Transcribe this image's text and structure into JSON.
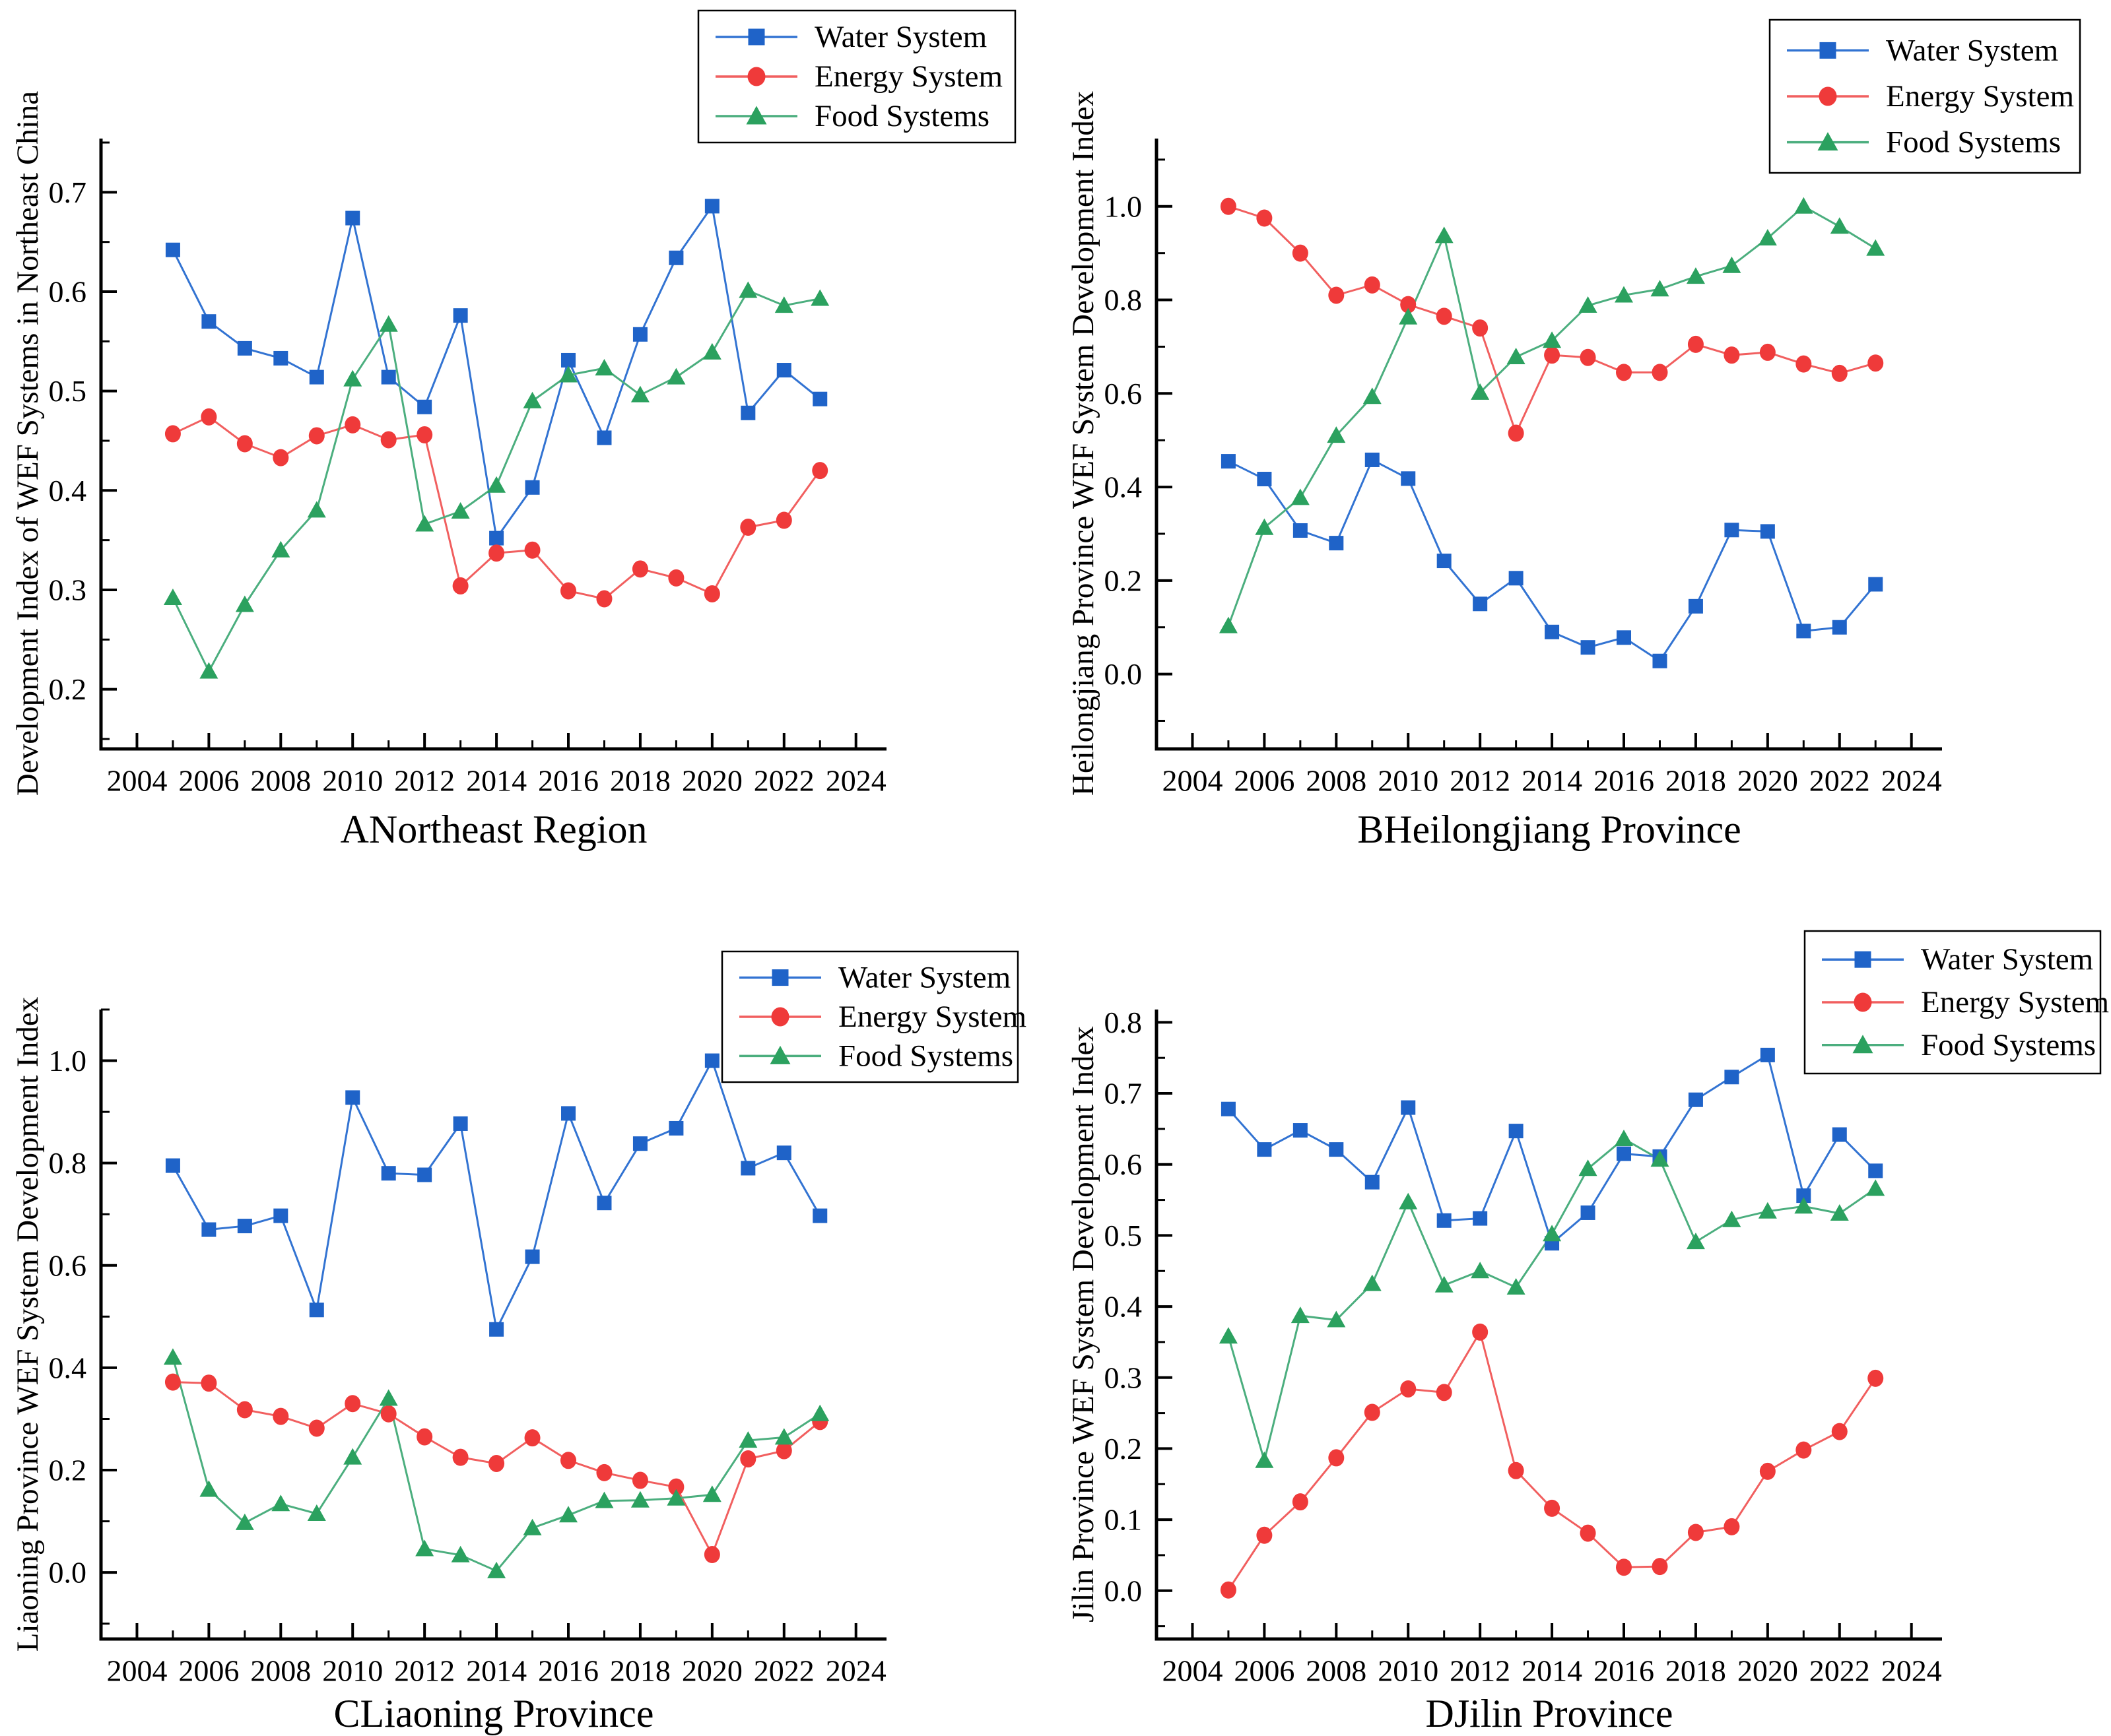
{
  "figure": {
    "colors": {
      "water": "#1f63c8",
      "water_line": "#3273d2",
      "energy": "#ef3a3a",
      "energy_line": "#f15f5f",
      "food": "#2ba15f",
      "food_line": "#4bae7e",
      "axis": "#000000",
      "legend_border": "#000000",
      "background": "#ffffff"
    },
    "legend": {
      "position": "top-right",
      "items": [
        {
          "key": "water",
          "label": "Water System",
          "marker": "square"
        },
        {
          "key": "energy",
          "label": "Energy System",
          "marker": "circle"
        },
        {
          "key": "food",
          "label": "Food Systems",
          "marker": "triangle"
        }
      ]
    }
  },
  "chart_data": [
    {
      "id": "A",
      "type": "line",
      "caption": "ANortheast Region",
      "ylabel": "Development Index of WEF Systems in Northeast China",
      "x": [
        2005,
        2006,
        2007,
        2008,
        2009,
        2010,
        2011,
        2012,
        2013,
        2014,
        2015,
        2016,
        2017,
        2018,
        2019,
        2020,
        2021,
        2022,
        2023
      ],
      "xticks": [
        2004,
        2006,
        2008,
        2010,
        2012,
        2014,
        2016,
        2018,
        2020,
        2022,
        2024
      ],
      "yticks": [
        0.2,
        0.3,
        0.4,
        0.5,
        0.6,
        0.7
      ],
      "xlim": [
        2003,
        2024.85
      ],
      "ylim": [
        0.14,
        0.754
      ],
      "grid": false,
      "legend_position": "top-right",
      "series": [
        {
          "name": "Water System",
          "key": "water",
          "values": [
            0.642,
            0.57,
            0.543,
            0.533,
            0.514,
            0.674,
            0.514,
            0.484,
            0.576,
            0.352,
            0.403,
            0.531,
            0.453,
            0.557,
            0.634,
            0.686,
            0.478,
            0.521,
            0.492
          ]
        },
        {
          "name": "Energy System",
          "key": "energy",
          "values": [
            0.457,
            0.474,
            0.447,
            0.433,
            0.455,
            0.466,
            0.451,
            0.456,
            0.304,
            0.337,
            0.34,
            0.299,
            0.291,
            0.321,
            0.312,
            0.296,
            0.363,
            0.37,
            0.42
          ]
        },
        {
          "name": "Food Systems",
          "key": "food",
          "values": [
            0.292,
            0.218,
            0.285,
            0.34,
            0.38,
            0.512,
            0.567,
            0.366,
            0.379,
            0.405,
            0.49,
            0.516,
            0.523,
            0.496,
            0.514,
            0.539,
            0.601,
            0.586,
            0.593
          ]
        }
      ]
    },
    {
      "id": "B",
      "type": "line",
      "caption": "BHeilongjiang Province",
      "ylabel": "Heilongjiang Province WEF System Development Index",
      "x": [
        2005,
        2006,
        2007,
        2008,
        2009,
        2010,
        2011,
        2012,
        2013,
        2014,
        2015,
        2016,
        2017,
        2018,
        2019,
        2020,
        2021,
        2022,
        2023
      ],
      "xticks": [
        2004,
        2006,
        2008,
        2010,
        2012,
        2014,
        2016,
        2018,
        2020,
        2022,
        2024
      ],
      "yticks": [
        0.0,
        0.2,
        0.4,
        0.6,
        0.8,
        1.0
      ],
      "xlim": [
        2003,
        2024.85
      ],
      "ylim": [
        -0.16,
        1.145
      ],
      "grid": false,
      "legend_position": "top-right",
      "series": [
        {
          "name": "Water System",
          "key": "water",
          "values": [
            0.455,
            0.417,
            0.307,
            0.28,
            0.458,
            0.418,
            0.242,
            0.15,
            0.205,
            0.09,
            0.057,
            0.078,
            0.028,
            0.145,
            0.308,
            0.305,
            0.092,
            0.1,
            0.192
          ]
        },
        {
          "name": "Energy System",
          "key": "energy",
          "values": [
            1.0,
            0.975,
            0.9,
            0.81,
            0.832,
            0.79,
            0.765,
            0.74,
            0.515,
            0.682,
            0.677,
            0.645,
            0.645,
            0.705,
            0.682,
            0.688,
            0.663,
            0.643,
            0.665
          ]
        },
        {
          "name": "Food Systems",
          "key": "food",
          "values": [
            0.103,
            0.313,
            0.377,
            0.51,
            0.593,
            0.763,
            0.937,
            0.602,
            0.678,
            0.713,
            0.788,
            0.81,
            0.823,
            0.85,
            0.873,
            0.932,
            1.0,
            0.957,
            0.91
          ]
        }
      ]
    },
    {
      "id": "C",
      "type": "line",
      "caption": "CLiaoning Province",
      "ylabel": "Liaoning Province WEF System Development Index",
      "x": [
        2005,
        2006,
        2007,
        2008,
        2009,
        2010,
        2011,
        2012,
        2013,
        2014,
        2015,
        2016,
        2017,
        2018,
        2019,
        2020,
        2021,
        2022,
        2023
      ],
      "xticks": [
        2004,
        2006,
        2008,
        2010,
        2012,
        2014,
        2016,
        2018,
        2020,
        2022,
        2024
      ],
      "yticks": [
        0.0,
        0.2,
        0.4,
        0.6,
        0.8,
        1.0
      ],
      "xlim": [
        2003,
        2024.85
      ],
      "ylim": [
        -0.13,
        1.1
      ],
      "grid": false,
      "legend_position": "top-right",
      "series": [
        {
          "name": "Water System",
          "key": "water",
          "values": [
            0.795,
            0.67,
            0.677,
            0.697,
            0.513,
            0.928,
            0.78,
            0.777,
            0.877,
            0.475,
            0.617,
            0.897,
            0.722,
            0.838,
            0.868,
            1.0,
            0.79,
            0.82,
            0.697
          ]
        },
        {
          "name": "Energy System",
          "key": "energy",
          "values": [
            0.372,
            0.37,
            0.318,
            0.305,
            0.282,
            0.33,
            0.31,
            0.265,
            0.225,
            0.213,
            0.263,
            0.219,
            0.195,
            0.18,
            0.167,
            0.035,
            0.222,
            0.238,
            0.295
          ]
        },
        {
          "name": "Food Systems",
          "key": "food",
          "values": [
            0.42,
            0.162,
            0.097,
            0.134,
            0.115,
            0.225,
            0.34,
            0.046,
            0.034,
            0.003,
            0.087,
            0.112,
            0.14,
            0.141,
            0.145,
            0.152,
            0.258,
            0.264,
            0.31
          ]
        }
      ]
    },
    {
      "id": "D",
      "type": "line",
      "caption": "DJilin Province",
      "ylabel": "Jilin Province WEF System Development Index",
      "x": [
        2005,
        2006,
        2007,
        2008,
        2009,
        2010,
        2011,
        2012,
        2013,
        2014,
        2015,
        2016,
        2017,
        2018,
        2019,
        2020,
        2021,
        2022,
        2023
      ],
      "xticks": [
        2004,
        2006,
        2008,
        2010,
        2012,
        2014,
        2016,
        2018,
        2020,
        2022,
        2024
      ],
      "yticks": [
        0.0,
        0.1,
        0.2,
        0.3,
        0.4,
        0.5,
        0.6,
        0.7,
        0.8
      ],
      "xlim": [
        2003,
        2024.85
      ],
      "ylim": [
        -0.068,
        0.818
      ],
      "grid": false,
      "legend_position": "top-right",
      "series": [
        {
          "name": "Water System",
          "key": "water",
          "values": [
            0.678,
            0.621,
            0.648,
            0.621,
            0.575,
            0.68,
            0.521,
            0.524,
            0.647,
            0.489,
            0.532,
            0.615,
            0.611,
            0.691,
            0.723,
            0.754,
            0.556,
            0.642,
            0.591
          ]
        },
        {
          "name": "Energy System",
          "key": "energy",
          "values": [
            0.001,
            0.078,
            0.125,
            0.187,
            0.251,
            0.284,
            0.279,
            0.364,
            0.169,
            0.116,
            0.081,
            0.033,
            0.034,
            0.082,
            0.09,
            0.168,
            0.198,
            0.224,
            0.299
          ]
        },
        {
          "name": "Food Systems",
          "key": "food",
          "values": [
            0.358,
            0.183,
            0.387,
            0.381,
            0.432,
            0.547,
            0.43,
            0.45,
            0.427,
            0.502,
            0.594,
            0.636,
            0.607,
            0.491,
            0.522,
            0.534,
            0.541,
            0.531,
            0.566
          ]
        }
      ]
    }
  ]
}
